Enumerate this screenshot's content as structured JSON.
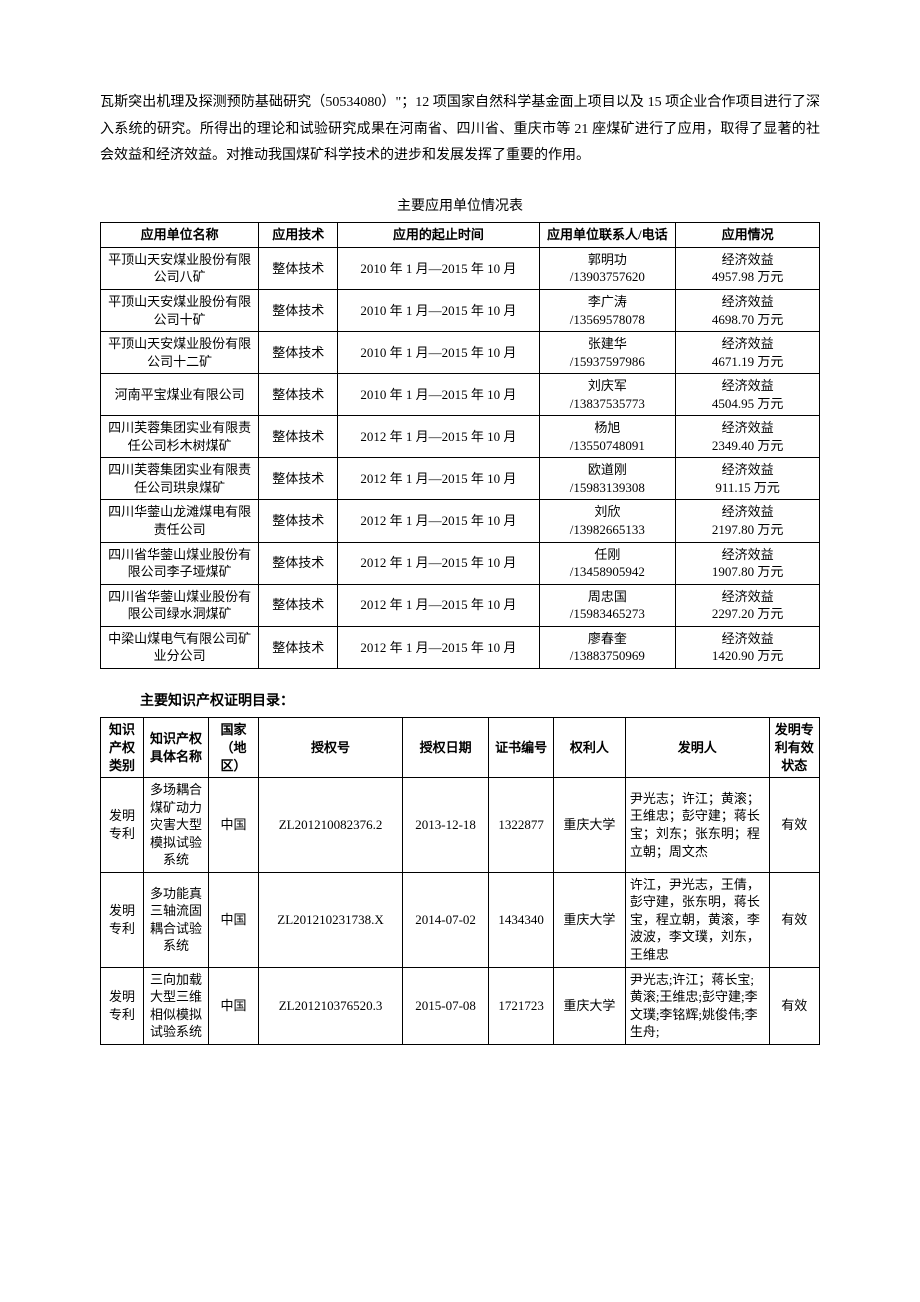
{
  "paragraph": "瓦斯突出机理及探测预防基础研究（50534080）\"；12 项国家自然科学基金面上项目以及 15 项企业合作项目进行了深入系统的研究。所得出的理论和试验研究成果在河南省、四川省、重庆市等 21 座煤矿进行了应用，取得了显著的社会效益和经济效益。对推动我国煤矿科学技术的进步和发展发挥了重要的作用。",
  "table1": {
    "title": "主要应用单位情况表",
    "headers": [
      "应用单位名称",
      "应用技术",
      "应用的起止时间",
      "应用单位联系人/电话",
      "应用情况"
    ],
    "rows": [
      [
        "平顶山天安煤业股份有限公司八矿",
        "整体技术",
        "2010 年 1 月—2015 年 10 月",
        "郭明功\n/13903757620",
        "经济效益\n4957.98 万元"
      ],
      [
        "平顶山天安煤业股份有限公司十矿",
        "整体技术",
        "2010 年 1 月—2015 年 10 月",
        "李广涛\n/13569578078",
        "经济效益\n4698.70 万元"
      ],
      [
        "平顶山天安煤业股份有限公司十二矿",
        "整体技术",
        "2010 年 1 月—2015 年 10 月",
        "张建华\n/15937597986",
        "经济效益\n4671.19 万元"
      ],
      [
        "河南平宝煤业有限公司",
        "整体技术",
        "2010 年 1 月—2015 年 10 月",
        "刘庆军\n/13837535773",
        "经济效益\n4504.95 万元"
      ],
      [
        "四川芙蓉集团实业有限责任公司杉木树煤矿",
        "整体技术",
        "2012 年 1 月—2015 年 10 月",
        "杨旭\n/13550748091",
        "经济效益\n2349.40 万元"
      ],
      [
        "四川芙蓉集团实业有限责任公司珙泉煤矿",
        "整体技术",
        "2012 年 1 月—2015 年 10 月",
        "欧道刚\n/15983139308",
        "经济效益\n911.15 万元"
      ],
      [
        "四川华蓥山龙滩煤电有限责任公司",
        "整体技术",
        "2012 年 1 月—2015 年 10 月",
        "刘欣\n/13982665133",
        "经济效益\n2197.80 万元"
      ],
      [
        "四川省华蓥山煤业股份有限公司李子垭煤矿",
        "整体技术",
        "2012 年 1 月—2015 年 10 月",
        "任刚\n/13458905942",
        "经济效益\n1907.80 万元"
      ],
      [
        "四川省华蓥山煤业股份有限公司绿水洞煤矿",
        "整体技术",
        "2012 年 1 月—2015 年 10 月",
        "周忠国\n/15983465273",
        "经济效益\n2297.20 万元"
      ],
      [
        "中梁山煤电气有限公司矿业分公司",
        "整体技术",
        "2012 年 1 月—2015 年 10 月",
        "廖春奎\n/13883750969",
        "经济效益\n1420.90 万元"
      ]
    ]
  },
  "section_title": "主要知识产权证明目录：",
  "table2": {
    "headers": [
      "知识产权类别",
      "知识产权具体名称",
      "国家（地区）",
      "授权号",
      "授权日期",
      "证书编号",
      "权利人",
      "发明人",
      "发明专利有效状态"
    ],
    "rows": [
      [
        "发明专利",
        "多场耦合煤矿动力灾害大型模拟试验系统",
        "中国",
        "ZL201210082376.2",
        "2013-12-18",
        "1322877",
        "重庆大学",
        "尹光志；许江；黄滚；王维忠；彭守建；蒋长宝；刘东；张东明；程立朝；周文杰",
        "有效"
      ],
      [
        "发明专利",
        "多功能真三轴流固耦合试验系统",
        "中国",
        "ZL201210231738.X",
        "2014-07-02",
        "1434340",
        "重庆大学",
        "许江，尹光志，王倩，彭守建，张东明，蒋长宝，程立朝，黄滚，李波波，李文璞，刘东，王维忠",
        "有效"
      ],
      [
        "发明专利",
        "三向加载大型三维相似模拟试验系统",
        "中国",
        "ZL201210376520.3",
        "2015-07-08",
        "1721723",
        "重庆大学",
        "尹光志;许江；蒋长宝;黄滚;王维忠;彭守建;李文璞;李铭辉;姚俊伟;李生舟;",
        "有效"
      ]
    ]
  }
}
